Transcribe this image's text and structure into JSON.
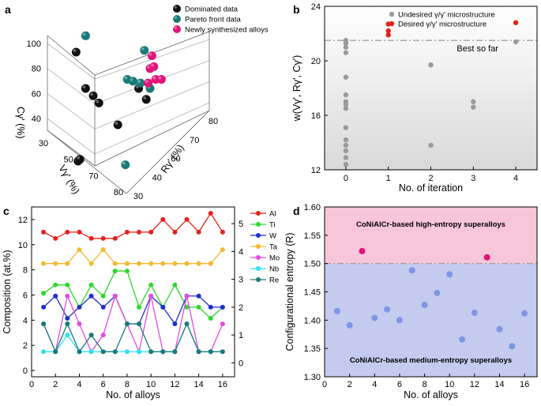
{
  "colors": {
    "dominated": "#111111",
    "pareto": "#1a7a7a",
    "newly": "#e0157a",
    "undesired": "#9a9a9a",
    "desired": "#e8201c",
    "gradient_top": "#ffffff",
    "gradient_bottom": "#d9d9d9",
    "high_band": "#f7c6d9",
    "low_band": "#c5cbee",
    "high_text": "#e0157a",
    "low_text": "#4a5bd0"
  },
  "chart_data": [
    {
      "panel": "a",
      "type": "scatter",
      "title": "",
      "axes": {
        "z_label": "Cγ' (%)",
        "x_label": "Vγ' (%)",
        "y_label": "Rγ' (%)",
        "z_ticks": [
          "40",
          "60",
          "80",
          "100"
        ],
        "x_ticks": [
          "30",
          "50",
          "70",
          "80"
        ],
        "y_ticks": [
          "30",
          "40",
          "60",
          "70",
          "80"
        ]
      },
      "legend": [
        "Dominated data",
        "Pareto front data",
        "Newly synthesized alloys"
      ],
      "legend_position": "top-right",
      "series": [
        {
          "name": "Dominated data",
          "points": [
            [
              0.11,
              0.8
            ],
            [
              0.16,
              0.6
            ],
            [
              0.2,
              0.56
            ],
            [
              0.23,
              0.52
            ],
            [
              0.33,
              0.4
            ],
            [
              0.44,
              0.6
            ],
            [
              0.48,
              0.54
            ],
            [
              0.12,
              0.2
            ],
            [
              0.13,
              0.21
            ]
          ]
        },
        {
          "name": "Pareto front data",
          "points": [
            [
              0.16,
              0.89
            ],
            [
              0.47,
              0.81
            ],
            [
              0.38,
              0.65
            ],
            [
              0.41,
              0.64
            ],
            [
              0.45,
              0.63
            ],
            [
              0.5,
              0.6
            ],
            [
              0.37,
              0.18
            ]
          ]
        },
        {
          "name": "Newly synthesized alloys",
          "points": [
            [
              0.51,
              0.78
            ],
            [
              0.5,
              0.71
            ],
            [
              0.52,
              0.72
            ],
            [
              0.49,
              0.63
            ],
            [
              0.53,
              0.65
            ],
            [
              0.56,
              0.65
            ]
          ]
        }
      ]
    },
    {
      "panel": "b",
      "type": "scatter",
      "xlabel": "No. of iteration",
      "ylabel": "w(Vγ', Rγ', Cγ')",
      "xlim": [
        -0.5,
        4.5
      ],
      "ylim": [
        12,
        24
      ],
      "xticks": [
        0,
        1,
        2,
        3,
        4
      ],
      "yticks": [
        12,
        16,
        20,
        24
      ],
      "legend": [
        "Undesired γ/γ' microstructure",
        "Desired γ/γ' microstructure"
      ],
      "legend_position": "top-right",
      "reference_line": {
        "y": 21.5,
        "label": "Best so far"
      },
      "series": [
        {
          "name": "Undesired γ/γ' microstructure",
          "points": [
            [
              0,
              21.5
            ],
            [
              0,
              21.3
            ],
            [
              0,
              21.0
            ],
            [
              0,
              20.6
            ],
            [
              0,
              18.8
            ],
            [
              0,
              17.5
            ],
            [
              0,
              17.0
            ],
            [
              0,
              16.8
            ],
            [
              0,
              16.5
            ],
            [
              0,
              15.1
            ],
            [
              0,
              14.2
            ],
            [
              0,
              13.8
            ],
            [
              0,
              13.4
            ],
            [
              0,
              12.9
            ],
            [
              0,
              12.4
            ],
            [
              2,
              19.7
            ],
            [
              2,
              13.8
            ],
            [
              3,
              17.0
            ],
            [
              3,
              16.6
            ],
            [
              4,
              21.4
            ]
          ]
        },
        {
          "name": "Desired γ/γ' microstructure",
          "points": [
            [
              1,
              22.7
            ],
            [
              1,
              22.2
            ],
            [
              1,
              21.9
            ],
            [
              4,
              22.8
            ]
          ]
        }
      ]
    },
    {
      "panel": "c",
      "type": "line",
      "xlabel": "No. of alloys",
      "ylabel": "Composition (at.%)",
      "x": [
        1,
        2,
        3,
        4,
        5,
        6,
        7,
        8,
        9,
        10,
        11,
        12,
        13,
        14,
        15,
        16
      ],
      "xlim": [
        0,
        17
      ],
      "ylim_left": [
        -0.5,
        13
      ],
      "ylim_right": [
        -0.5,
        5.6
      ],
      "yticks_left": [
        0,
        2,
        4,
        6,
        8,
        10,
        12
      ],
      "yticks_right": [
        0,
        1,
        2,
        3,
        4,
        5
      ],
      "legend_position": "right",
      "series": [
        {
          "name": "Al",
          "axis": "left",
          "color": "#e8201c",
          "values": [
            11,
            10.5,
            11,
            11,
            10.5,
            10.5,
            10.5,
            11,
            11,
            11,
            12,
            11,
            12,
            11,
            12.5,
            11
          ]
        },
        {
          "name": "Ta",
          "axis": "left",
          "color": "#f5b82e",
          "values": [
            8.5,
            8.5,
            8.5,
            9.6,
            8.5,
            9.6,
            8.5,
            8.5,
            8.5,
            8.5,
            8.5,
            8.5,
            8.5,
            8.5,
            8.5,
            9.6
          ]
        },
        {
          "name": "Ti",
          "axis": "right",
          "color": "#2bd92b",
          "values": [
            2.5,
            2.8,
            2.8,
            2.0,
            2.8,
            2.4,
            3.3,
            3.3,
            2.0,
            2.8,
            2.0,
            2.8,
            2.0,
            2.0,
            1.6,
            2.0
          ]
        },
        {
          "name": "W",
          "axis": "right",
          "color": "#1f2fd0",
          "values": [
            2.0,
            2.4,
            1.6,
            2.0,
            2.4,
            2.0,
            2.4,
            1.4,
            1.4,
            2.4,
            2.0,
            1.4,
            2.4,
            2.4,
            2.0,
            2.0
          ]
        },
        {
          "name": "Mo",
          "axis": "right",
          "color": "#e54ae0",
          "values": [
            1.4,
            0.4,
            2.4,
            1.4,
            0.4,
            1.0,
            2.4,
            1.4,
            0.4,
            2.4,
            0.4,
            0.4,
            2.4,
            0.4,
            0.4,
            1.4
          ]
        },
        {
          "name": "Nb",
          "axis": "right",
          "color": "#2ee0f0",
          "values": [
            0.4,
            0.4,
            1.0,
            0.4,
            0.4,
            0.4,
            0.4,
            0.4,
            0.4,
            0.4,
            0.4,
            0.4,
            1.4,
            0.4,
            0.4,
            0.4
          ]
        },
        {
          "name": "Re",
          "axis": "right",
          "color": "#1a7a7a",
          "values": [
            1.4,
            0.4,
            1.4,
            0.4,
            1.0,
            0.4,
            0.4,
            1.4,
            1.4,
            0.4,
            0.4,
            0.4,
            1.4,
            0.4,
            0.4,
            0.4
          ]
        }
      ]
    },
    {
      "panel": "d",
      "type": "scatter",
      "xlabel": "No. of alloys",
      "ylabel": "Configurational entropy (R)",
      "xlim": [
        0,
        17
      ],
      "ylim": [
        1.3,
        1.6
      ],
      "xticks": [
        0,
        2,
        4,
        6,
        8,
        10,
        12,
        14,
        16
      ],
      "yticks": [
        1.3,
        1.35,
        1.4,
        1.45,
        1.5,
        1.55,
        1.6
      ],
      "threshold": 1.5,
      "band_labels": {
        "high": "CoNiAlCr-based high-entropy superalloys",
        "low": "CoNiAlCr-based medium-entropy superalloys"
      },
      "series": [
        {
          "name": "high-entropy",
          "points": [
            [
              3,
              1.522
            ],
            [
              13,
              1.511
            ]
          ]
        },
        {
          "name": "medium-entropy",
          "points": [
            [
              1,
              1.416
            ],
            [
              2,
              1.391
            ],
            [
              4,
              1.404
            ],
            [
              5,
              1.419
            ],
            [
              6,
              1.4
            ],
            [
              7,
              1.488
            ],
            [
              8,
              1.427
            ],
            [
              9,
              1.448
            ],
            [
              10,
              1.481
            ],
            [
              11,
              1.366
            ],
            [
              12,
              1.413
            ],
            [
              14,
              1.384
            ],
            [
              15,
              1.354
            ],
            [
              16,
              1.412
            ]
          ]
        }
      ]
    }
  ]
}
